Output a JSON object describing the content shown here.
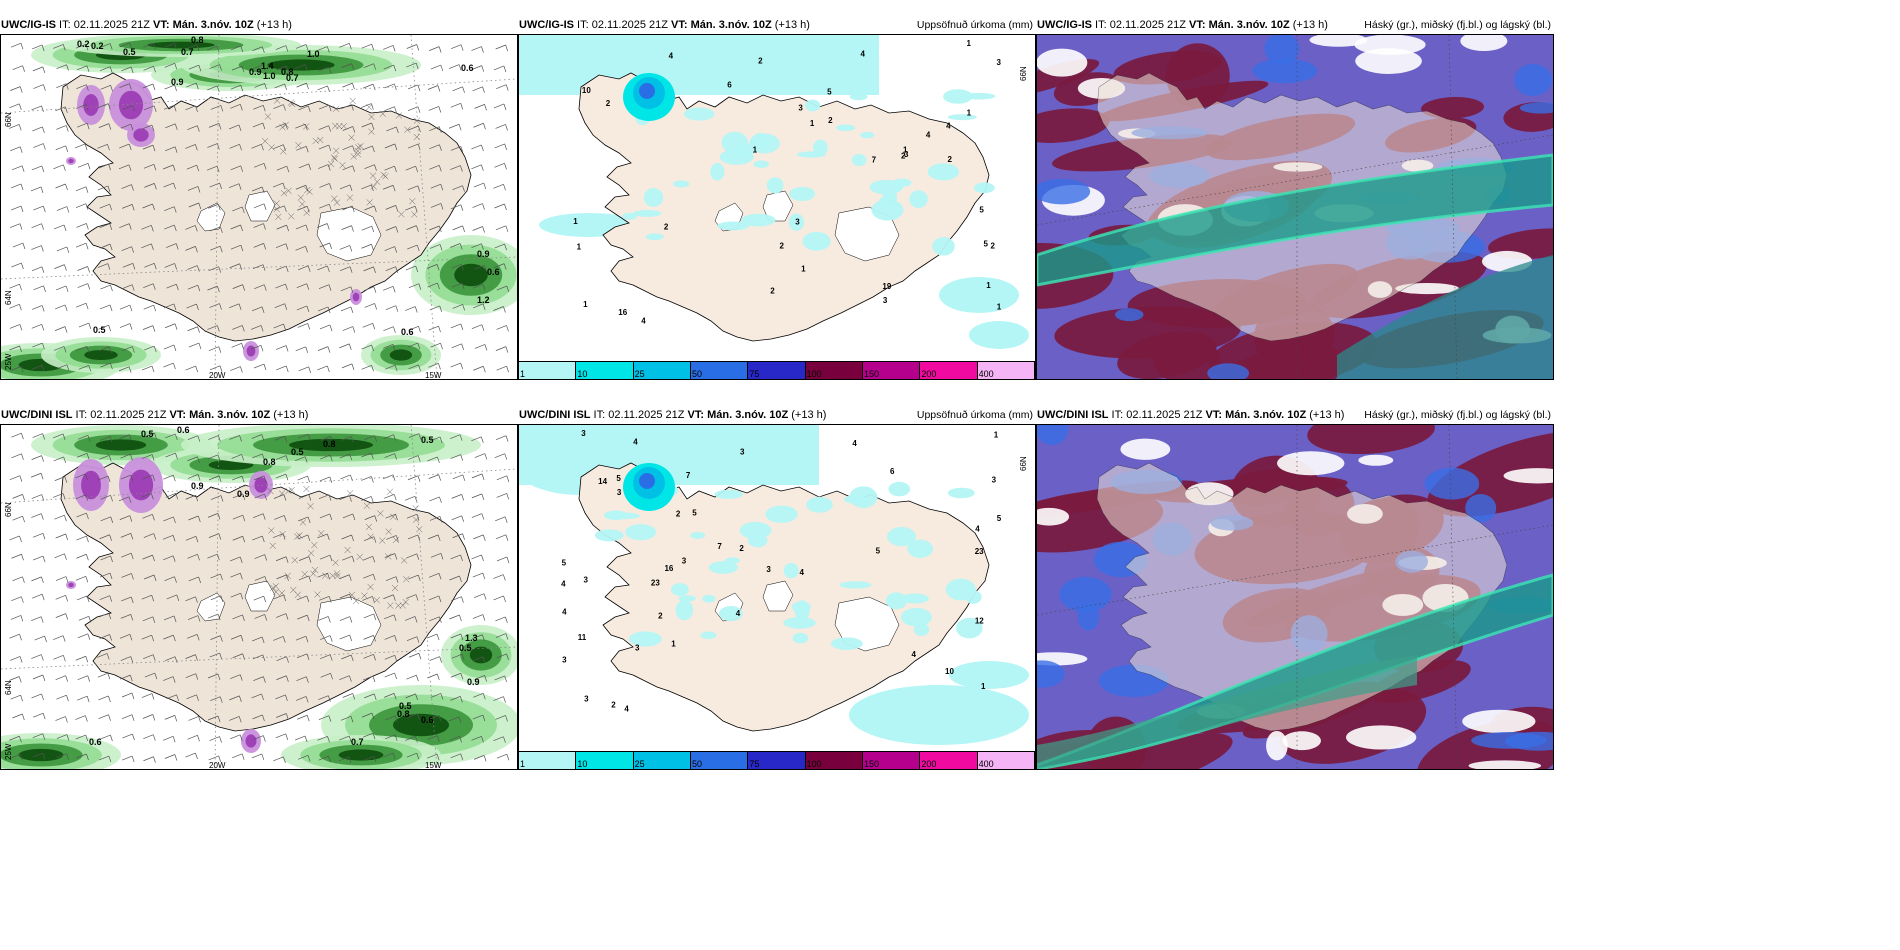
{
  "rows": [
    {
      "left": {
        "model": "UWC/IG-IS",
        "rest": " IT: 02.11.2025 21Z ",
        "vt": "VT: Mán. 3.nóv. 10Z",
        "lead": " (+13 h)"
      },
      "mid": {
        "model": "UWC/IG-IS",
        "rest": " IT: 02.11.2025 21Z ",
        "vt": "VT: Mán. 3.nóv. 10Z",
        "lead": " (+13 h)",
        "right": "Uppsöfnuð úrkoma (mm)"
      },
      "right": {
        "model": "UWC/IG-IS",
        "rest": " IT: 02.11.2025 21Z ",
        "vt": "VT: Mán. 3.nóv. 10Z",
        "lead": " (+13 h)",
        "right": "Háský (gr.), miðský (fj.bl.) og lágský (bl.)"
      },
      "ticks": {
        "lat1": "66N",
        "lat2": "64N",
        "lon1": "20W",
        "lon2": "15W",
        "lat3": "25W",
        "mlat": "66N"
      }
    },
    {
      "left": {
        "model": "UWC/DINI ISL",
        "rest": " IT: 02.11.2025 21Z ",
        "vt": "VT: Mán. 3.nóv. 10Z",
        "lead": " (+13 h)"
      },
      "mid": {
        "model": "UWC/DINI ISL",
        "rest": " IT: 02.11.2025 21Z ",
        "vt": "VT: Mán. 3.nóv. 10Z",
        "lead": " (+13 h)",
        "right": "Uppsöfnuð úrkoma (mm)"
      },
      "right": {
        "model": "UWC/DINI ISL",
        "rest": " IT: 02.11.2025 21Z ",
        "vt": "VT: Mán. 3.nóv. 10Z",
        "lead": " (+13 h)",
        "right": "Háský (gr.), miðský (fj.bl.) og lágský (bl.)"
      },
      "ticks": {
        "lat1": "66N",
        "lat2": "64N",
        "lon1": "20W",
        "lon2": "15W",
        "lat3": "25W",
        "mlat": "66N"
      }
    }
  ],
  "colorbar": {
    "labels": [
      "1",
      "10",
      "25",
      "50",
      "75",
      "100",
      "150",
      "200",
      "400"
    ],
    "colors": [
      "#b4f5f5",
      "#00e6e6",
      "#00c0e6",
      "#2a6ee6",
      "#2828c8",
      "#78003c",
      "#b4008c",
      "#f00aa0",
      "#f5b4f5"
    ]
  },
  "precip_labels_top": [
    "5",
    "5",
    "4",
    "4",
    "2",
    "5",
    "4",
    "2",
    "3",
    "3",
    "19",
    "16",
    "10",
    "2",
    "7",
    "2",
    "1",
    "1",
    "1",
    "2",
    "2",
    "4",
    "1",
    "6",
    "4",
    "3",
    "1",
    "2",
    "3",
    "3",
    "2",
    "1",
    "1",
    "1",
    "1",
    "1",
    "1",
    "2"
  ],
  "precip_labels_bottom": [
    "4",
    "3",
    "4",
    "3",
    "4",
    "5",
    "3",
    "23",
    "16",
    "14",
    "23",
    "12",
    "3",
    "5",
    "6",
    "2",
    "11",
    "5",
    "4",
    "3",
    "5",
    "4",
    "3",
    "2",
    "7",
    "3",
    "4",
    "5",
    "2",
    "3",
    "1",
    "3",
    "4",
    "3",
    "1",
    "1",
    "2",
    "4",
    "10",
    "7",
    "4"
  ],
  "wind_labels_top": [
    "0.2",
    "0.2",
    "0.5",
    "0.8",
    "0.7",
    "1.0",
    "0.9",
    "0.9",
    "1.4",
    "1.0",
    "0.8",
    "0.7",
    "0.6",
    "0.9",
    "0.6",
    "1.2",
    "0.6",
    "0.5"
  ],
  "wind_labels_bottom": [
    "0.5",
    "0.6",
    "0.8",
    "0.8",
    "0.5",
    "0.5",
    "0.9",
    "0.9",
    "0.6",
    "0.5",
    "1.3",
    "0.9",
    "0.8",
    "0.6",
    "0.7",
    "0.5"
  ]
}
